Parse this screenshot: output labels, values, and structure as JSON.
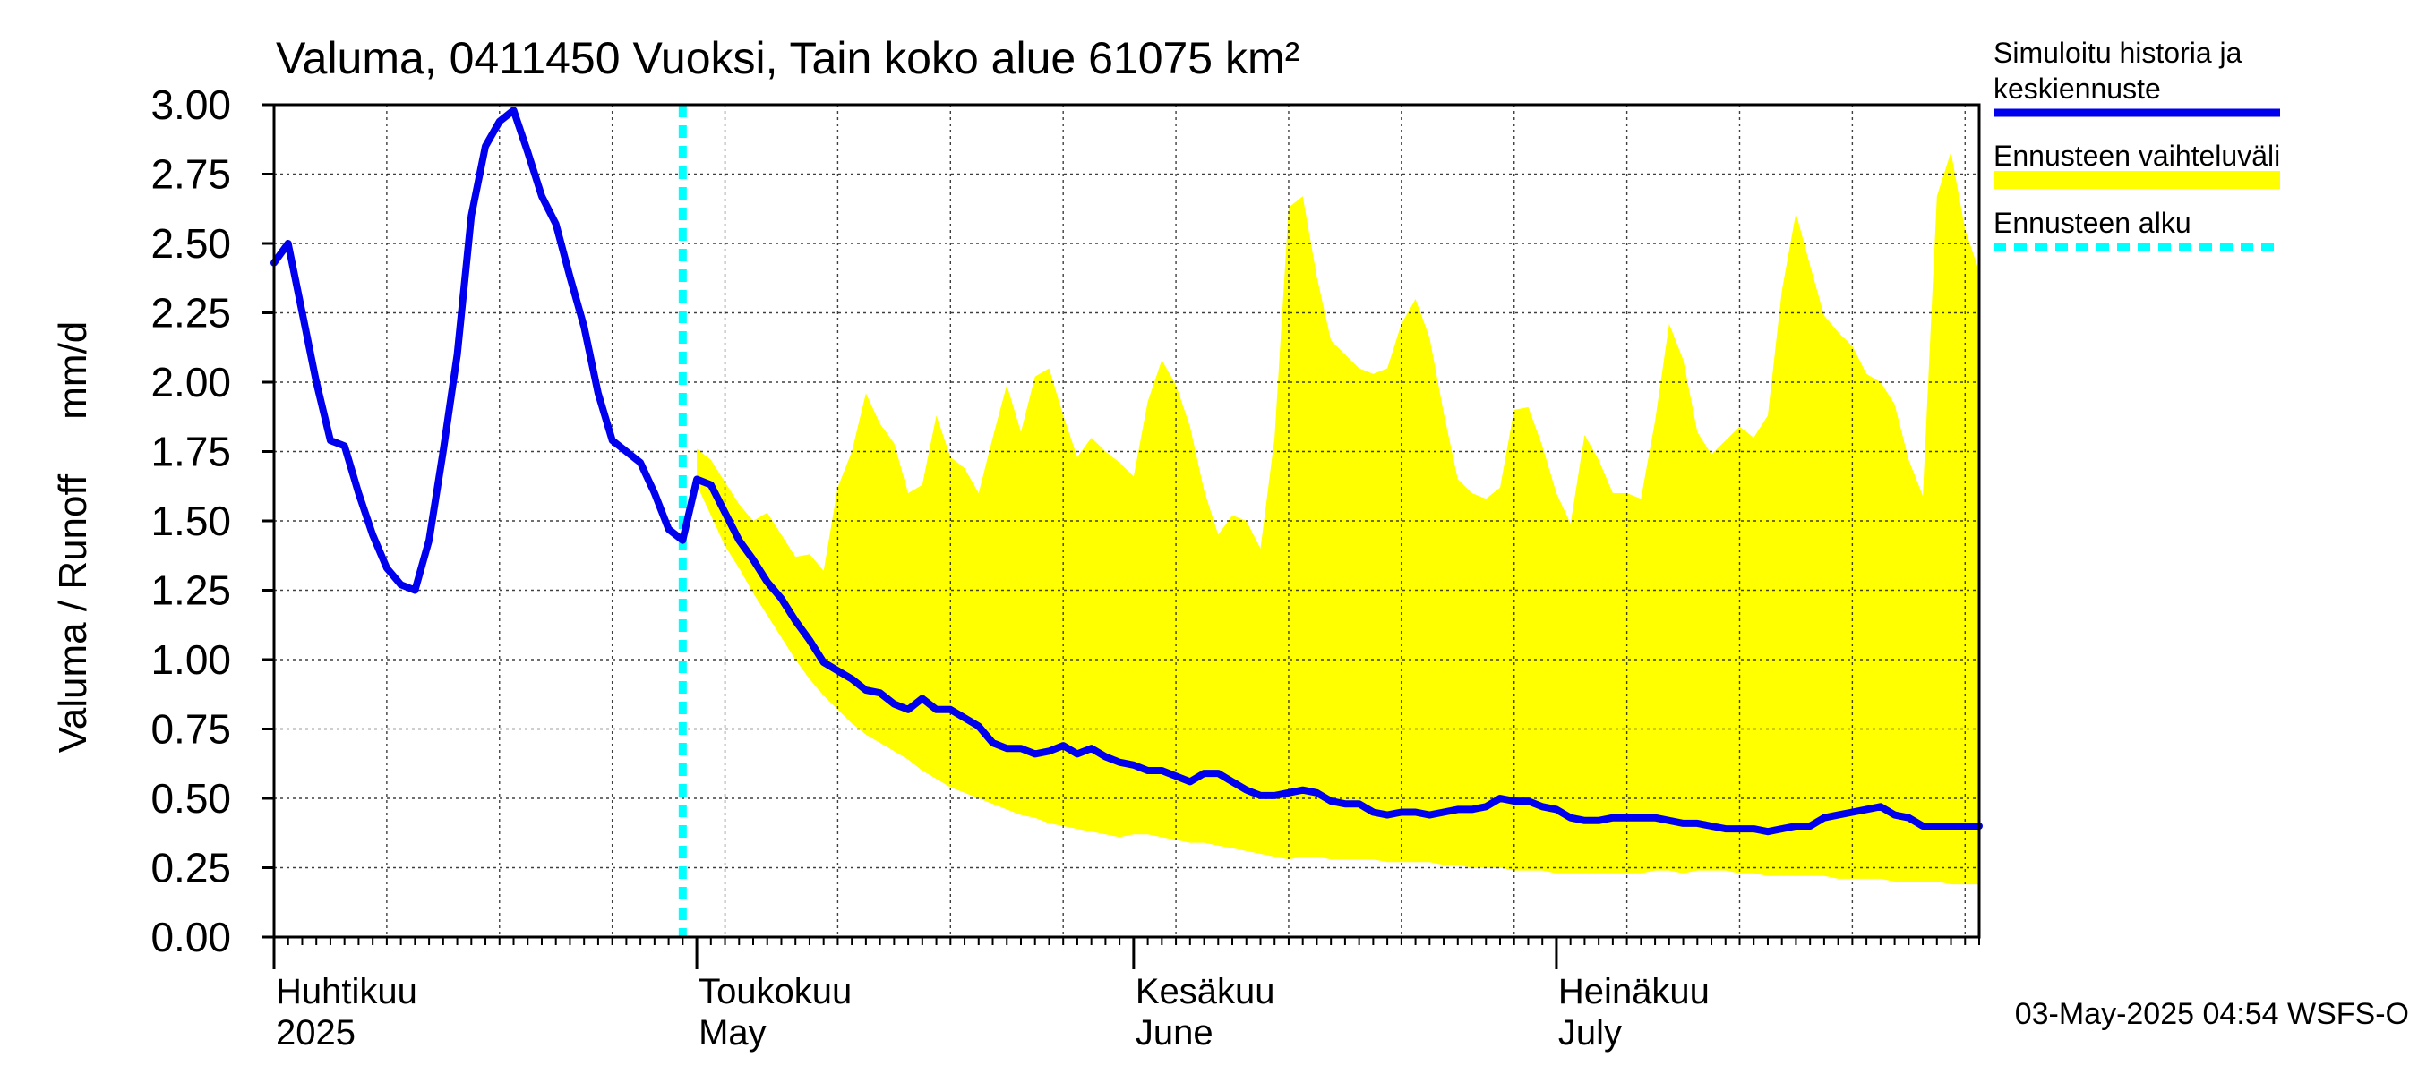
{
  "chart_data": {
    "type": "line",
    "title": "Valuma, 0411450 Vuoksi, Tain koko alue 61075 km²",
    "ylabel": "Valuma / Runoff     mm/d",
    "ylim": [
      0,
      3.0
    ],
    "yticks": [
      "0.00",
      "0.25",
      "0.50",
      "0.75",
      "1.00",
      "1.25",
      "1.50",
      "1.75",
      "2.00",
      "2.25",
      "2.50",
      "2.75",
      "3.00"
    ],
    "x_start_day": 0,
    "x_end_day": 121,
    "month_labels": [
      {
        "line1": "Huhtikuu",
        "line2": "2025",
        "day": 0
      },
      {
        "line1": "Toukokuu",
        "line2": "May",
        "day": 30
      },
      {
        "line1": "Kesäkuu",
        "line2": "June",
        "day": 61
      },
      {
        "line1": "Heinäkuu",
        "line2": "July",
        "day": 91
      }
    ],
    "forecast_start_day": 30,
    "timestamp": "03-May-2025 04:54 WSFS-O",
    "legend": [
      {
        "label_lines": [
          "Simuloitu historia ja",
          "keskiennuste"
        ],
        "color": "#0000ee",
        "style": "solid"
      },
      {
        "label_lines": [
          "Ennusteen vaihteluväli"
        ],
        "color": "#ffff00",
        "style": "band"
      },
      {
        "label_lines": [
          "Ennusteen alku"
        ],
        "color": "#00ffff",
        "style": "dashed"
      }
    ],
    "series": [
      {
        "name": "Simuloitu historia ja keskiennuste",
        "color": "#0000ee",
        "points": [
          [
            0,
            2.43
          ],
          [
            1,
            2.5
          ],
          [
            2,
            2.25
          ],
          [
            3,
            2.0
          ],
          [
            4,
            1.79
          ],
          [
            5,
            1.77
          ],
          [
            6,
            1.6
          ],
          [
            7,
            1.45
          ],
          [
            8,
            1.33
          ],
          [
            9,
            1.27
          ],
          [
            10,
            1.25
          ],
          [
            11,
            1.43
          ],
          [
            12,
            1.75
          ],
          [
            13,
            2.1
          ],
          [
            14,
            2.6
          ],
          [
            15,
            2.85
          ],
          [
            16,
            2.94
          ],
          [
            17,
            2.98
          ],
          [
            18,
            2.83
          ],
          [
            19,
            2.67
          ],
          [
            20,
            2.57
          ],
          [
            21,
            2.38
          ],
          [
            22,
            2.2
          ],
          [
            23,
            1.96
          ],
          [
            24,
            1.79
          ],
          [
            25,
            1.75
          ],
          [
            26,
            1.71
          ],
          [
            27,
            1.6
          ],
          [
            28,
            1.47
          ],
          [
            29,
            1.43
          ],
          [
            30,
            1.65
          ],
          [
            31,
            1.63
          ],
          [
            32,
            1.53
          ],
          [
            33,
            1.43
          ],
          [
            34,
            1.36
          ],
          [
            35,
            1.28
          ],
          [
            36,
            1.22
          ],
          [
            37,
            1.14
          ],
          [
            38,
            1.07
          ],
          [
            39,
            0.99
          ],
          [
            40,
            0.96
          ],
          [
            41,
            0.93
          ],
          [
            42,
            0.89
          ],
          [
            43,
            0.88
          ],
          [
            44,
            0.84
          ],
          [
            45,
            0.82
          ],
          [
            46,
            0.86
          ],
          [
            47,
            0.82
          ],
          [
            48,
            0.82
          ],
          [
            49,
            0.79
          ],
          [
            50,
            0.76
          ],
          [
            51,
            0.7
          ],
          [
            52,
            0.68
          ],
          [
            53,
            0.68
          ],
          [
            54,
            0.66
          ],
          [
            55,
            0.67
          ],
          [
            56,
            0.69
          ],
          [
            57,
            0.66
          ],
          [
            58,
            0.68
          ],
          [
            59,
            0.65
          ],
          [
            60,
            0.63
          ],
          [
            61,
            0.62
          ],
          [
            62,
            0.6
          ],
          [
            63,
            0.6
          ],
          [
            64,
            0.58
          ],
          [
            65,
            0.56
          ],
          [
            66,
            0.59
          ],
          [
            67,
            0.59
          ],
          [
            68,
            0.56
          ],
          [
            69,
            0.53
          ],
          [
            70,
            0.51
          ],
          [
            71,
            0.51
          ],
          [
            72,
            0.52
          ],
          [
            73,
            0.53
          ],
          [
            74,
            0.52
          ],
          [
            75,
            0.49
          ],
          [
            76,
            0.48
          ],
          [
            77,
            0.48
          ],
          [
            78,
            0.45
          ],
          [
            79,
            0.44
          ],
          [
            80,
            0.45
          ],
          [
            81,
            0.45
          ],
          [
            82,
            0.44
          ],
          [
            83,
            0.45
          ],
          [
            84,
            0.46
          ],
          [
            85,
            0.46
          ],
          [
            86,
            0.47
          ],
          [
            87,
            0.5
          ],
          [
            88,
            0.49
          ],
          [
            89,
            0.49
          ],
          [
            90,
            0.47
          ],
          [
            91,
            0.46
          ],
          [
            92,
            0.43
          ],
          [
            93,
            0.42
          ],
          [
            94,
            0.42
          ],
          [
            95,
            0.43
          ],
          [
            96,
            0.43
          ],
          [
            97,
            0.43
          ],
          [
            98,
            0.43
          ],
          [
            99,
            0.42
          ],
          [
            100,
            0.41
          ],
          [
            101,
            0.41
          ],
          [
            102,
            0.4
          ],
          [
            103,
            0.39
          ],
          [
            104,
            0.39
          ],
          [
            105,
            0.39
          ],
          [
            106,
            0.38
          ],
          [
            107,
            0.39
          ],
          [
            108,
            0.4
          ],
          [
            109,
            0.4
          ],
          [
            110,
            0.43
          ],
          [
            111,
            0.44
          ],
          [
            112,
            0.45
          ],
          [
            113,
            0.46
          ],
          [
            114,
            0.47
          ],
          [
            115,
            0.44
          ],
          [
            116,
            0.43
          ],
          [
            117,
            0.4
          ],
          [
            118,
            0.4
          ],
          [
            119,
            0.4
          ],
          [
            120,
            0.4
          ],
          [
            121,
            0.4
          ]
        ]
      },
      {
        "name": "Ennusteen vaihteluväli",
        "color": "#ffff00",
        "upper": [
          [
            30,
            1.76
          ],
          [
            31,
            1.72
          ],
          [
            32,
            1.64
          ],
          [
            33,
            1.56
          ],
          [
            34,
            1.5
          ],
          [
            35,
            1.53
          ],
          [
            36,
            1.45
          ],
          [
            37,
            1.37
          ],
          [
            38,
            1.38
          ],
          [
            39,
            1.32
          ],
          [
            40,
            1.62
          ],
          [
            41,
            1.75
          ],
          [
            42,
            1.96
          ],
          [
            43,
            1.85
          ],
          [
            44,
            1.78
          ],
          [
            45,
            1.6
          ],
          [
            46,
            1.63
          ],
          [
            47,
            1.88
          ],
          [
            48,
            1.73
          ],
          [
            49,
            1.69
          ],
          [
            50,
            1.6
          ],
          [
            51,
            1.8
          ],
          [
            52,
            1.99
          ],
          [
            53,
            1.82
          ],
          [
            54,
            2.02
          ],
          [
            55,
            2.05
          ],
          [
            56,
            1.88
          ],
          [
            57,
            1.73
          ],
          [
            58,
            1.8
          ],
          [
            59,
            1.75
          ],
          [
            60,
            1.71
          ],
          [
            61,
            1.66
          ],
          [
            62,
            1.93
          ],
          [
            63,
            2.08
          ],
          [
            64,
            1.99
          ],
          [
            65,
            1.84
          ],
          [
            66,
            1.61
          ],
          [
            67,
            1.45
          ],
          [
            68,
            1.52
          ],
          [
            69,
            1.5
          ],
          [
            70,
            1.4
          ],
          [
            71,
            1.8
          ],
          [
            72,
            2.63
          ],
          [
            73,
            2.67
          ],
          [
            74,
            2.38
          ],
          [
            75,
            2.15
          ],
          [
            76,
            2.1
          ],
          [
            77,
            2.05
          ],
          [
            78,
            2.03
          ],
          [
            79,
            2.05
          ],
          [
            80,
            2.21
          ],
          [
            81,
            2.3
          ],
          [
            82,
            2.16
          ],
          [
            83,
            1.89
          ],
          [
            84,
            1.65
          ],
          [
            85,
            1.6
          ],
          [
            86,
            1.58
          ],
          [
            87,
            1.62
          ],
          [
            88,
            1.9
          ],
          [
            89,
            1.91
          ],
          [
            90,
            1.77
          ],
          [
            91,
            1.6
          ],
          [
            92,
            1.49
          ],
          [
            93,
            1.81
          ],
          [
            94,
            1.72
          ],
          [
            95,
            1.6
          ],
          [
            96,
            1.6
          ],
          [
            97,
            1.58
          ],
          [
            98,
            1.86
          ],
          [
            99,
            2.21
          ],
          [
            100,
            2.08
          ],
          [
            101,
            1.82
          ],
          [
            102,
            1.74
          ],
          [
            103,
            1.79
          ],
          [
            104,
            1.84
          ],
          [
            105,
            1.8
          ],
          [
            106,
            1.88
          ],
          [
            107,
            2.33
          ],
          [
            108,
            2.61
          ],
          [
            109,
            2.42
          ],
          [
            110,
            2.24
          ],
          [
            111,
            2.18
          ],
          [
            112,
            2.13
          ],
          [
            113,
            2.03
          ],
          [
            114,
            2.0
          ],
          [
            115,
            1.92
          ],
          [
            116,
            1.72
          ],
          [
            117,
            1.59
          ],
          [
            118,
            2.67
          ],
          [
            119,
            2.83
          ],
          [
            120,
            2.55
          ],
          [
            121,
            2.4
          ]
        ],
        "lower": [
          [
            30,
            1.63
          ],
          [
            31,
            1.52
          ],
          [
            32,
            1.41
          ],
          [
            33,
            1.33
          ],
          [
            34,
            1.24
          ],
          [
            35,
            1.16
          ],
          [
            36,
            1.08
          ],
          [
            37,
            1.0
          ],
          [
            38,
            0.93
          ],
          [
            39,
            0.87
          ],
          [
            40,
            0.82
          ],
          [
            41,
            0.77
          ],
          [
            42,
            0.73
          ],
          [
            43,
            0.7
          ],
          [
            44,
            0.67
          ],
          [
            45,
            0.64
          ],
          [
            46,
            0.6
          ],
          [
            47,
            0.57
          ],
          [
            48,
            0.54
          ],
          [
            49,
            0.52
          ],
          [
            50,
            0.5
          ],
          [
            51,
            0.48
          ],
          [
            52,
            0.46
          ],
          [
            53,
            0.44
          ],
          [
            54,
            0.43
          ],
          [
            55,
            0.41
          ],
          [
            56,
            0.4
          ],
          [
            57,
            0.39
          ],
          [
            58,
            0.38
          ],
          [
            59,
            0.37
          ],
          [
            60,
            0.36
          ],
          [
            61,
            0.37
          ],
          [
            62,
            0.37
          ],
          [
            63,
            0.36
          ],
          [
            64,
            0.35
          ],
          [
            65,
            0.34
          ],
          [
            66,
            0.34
          ],
          [
            67,
            0.33
          ],
          [
            68,
            0.32
          ],
          [
            69,
            0.31
          ],
          [
            70,
            0.3
          ],
          [
            71,
            0.29
          ],
          [
            72,
            0.28
          ],
          [
            73,
            0.29
          ],
          [
            74,
            0.29
          ],
          [
            75,
            0.28
          ],
          [
            76,
            0.28
          ],
          [
            77,
            0.28
          ],
          [
            78,
            0.28
          ],
          [
            79,
            0.27
          ],
          [
            80,
            0.27
          ],
          [
            81,
            0.27
          ],
          [
            82,
            0.27
          ],
          [
            83,
            0.26
          ],
          [
            84,
            0.26
          ],
          [
            85,
            0.25
          ],
          [
            86,
            0.25
          ],
          [
            87,
            0.25
          ],
          [
            88,
            0.24
          ],
          [
            89,
            0.24
          ],
          [
            90,
            0.24
          ],
          [
            91,
            0.23
          ],
          [
            92,
            0.23
          ],
          [
            93,
            0.23
          ],
          [
            94,
            0.23
          ],
          [
            95,
            0.23
          ],
          [
            96,
            0.23
          ],
          [
            97,
            0.23
          ],
          [
            98,
            0.24
          ],
          [
            99,
            0.24
          ],
          [
            100,
            0.23
          ],
          [
            101,
            0.24
          ],
          [
            102,
            0.24
          ],
          [
            103,
            0.24
          ],
          [
            104,
            0.23
          ],
          [
            105,
            0.23
          ],
          [
            106,
            0.22
          ],
          [
            107,
            0.22
          ],
          [
            108,
            0.22
          ],
          [
            109,
            0.22
          ],
          [
            110,
            0.22
          ],
          [
            111,
            0.21
          ],
          [
            112,
            0.21
          ],
          [
            113,
            0.21
          ],
          [
            114,
            0.21
          ],
          [
            115,
            0.2
          ],
          [
            116,
            0.2
          ],
          [
            117,
            0.2
          ],
          [
            118,
            0.2
          ],
          [
            119,
            0.19
          ],
          [
            120,
            0.19
          ],
          [
            121,
            0.19
          ]
        ]
      }
    ]
  }
}
